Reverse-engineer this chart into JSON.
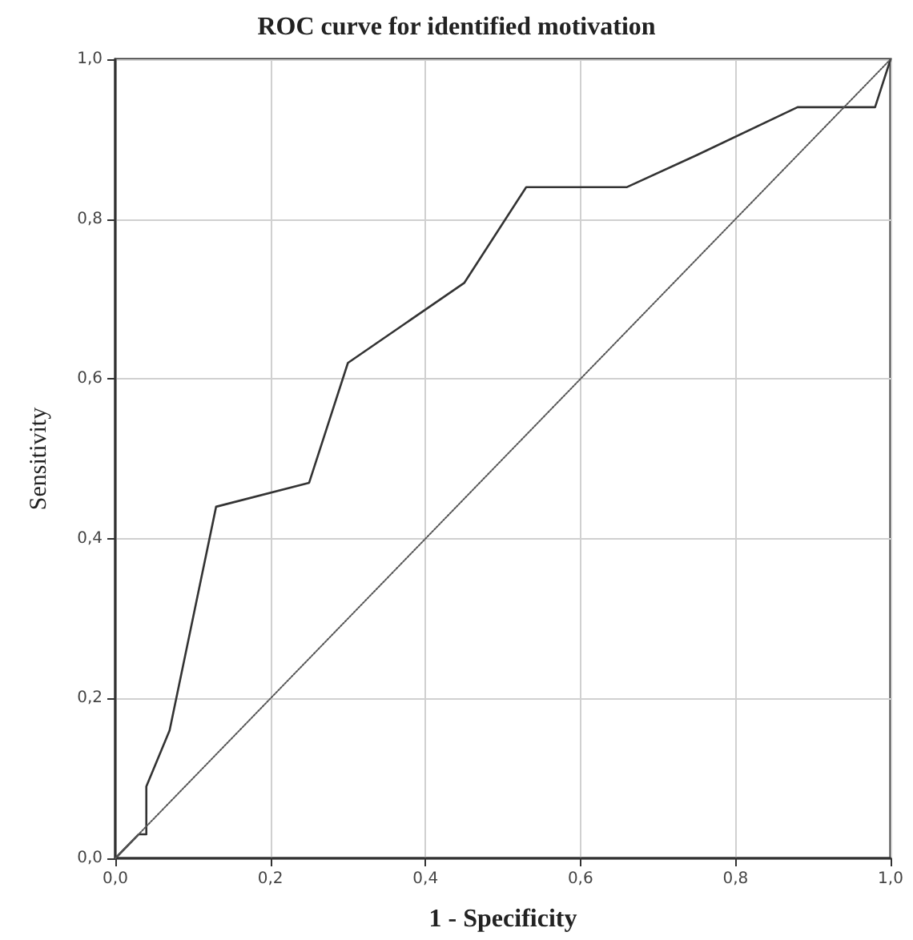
{
  "chart_data": {
    "type": "line",
    "title": "ROC curve for identified motivation",
    "xlabel": "1 - Specificity",
    "ylabel": "Sensitivity",
    "xlim": [
      0,
      1
    ],
    "ylim": [
      0,
      1
    ],
    "xticks": [
      {
        "value": 0,
        "label": "0,0"
      },
      {
        "value": 0.2,
        "label": "0,2"
      },
      {
        "value": 0.4,
        "label": "0,4"
      },
      {
        "value": 0.6,
        "label": "0,6"
      },
      {
        "value": 0.8,
        "label": "0,8"
      },
      {
        "value": 1,
        "label": "1,0"
      }
    ],
    "yticks": [
      {
        "value": 0,
        "label": "0,0"
      },
      {
        "value": 0.2,
        "label": "0,2"
      },
      {
        "value": 0.4,
        "label": "0,4"
      },
      {
        "value": 0.6,
        "label": "0,6"
      },
      {
        "value": 0.8,
        "label": "0,8"
      },
      {
        "value": 1,
        "label": "1,0"
      }
    ],
    "grid": true,
    "marker": "none",
    "series": [
      {
        "color": "#333333",
        "line_style": "solid",
        "x": [
          0,
          0.01,
          0.03,
          0.04,
          0.04,
          0.07,
          0.13,
          0.25,
          0.3,
          0.45,
          0.53,
          0.66,
          0.75,
          0.88,
          0.98,
          1
        ],
        "values": [
          0,
          0.01,
          0.03,
          0.03,
          0.09,
          0.16,
          0.44,
          0.47,
          0.62,
          0.72,
          0.84,
          0.84,
          0.88,
          0.94,
          0.94,
          1
        ]
      },
      {
        "color": "#555555",
        "line_style": "dotted",
        "x": [
          0,
          1
        ],
        "values": [
          0,
          1
        ]
      }
    ]
  }
}
